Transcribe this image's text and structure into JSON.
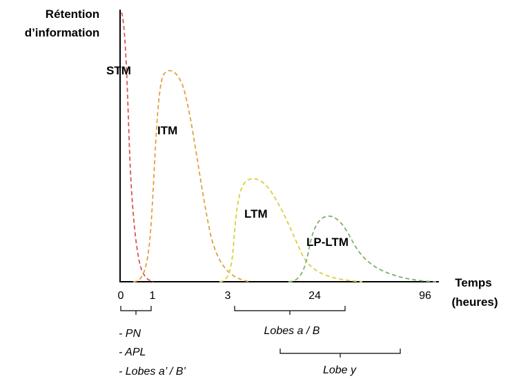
{
  "y_axis_label": [
    "Rétention",
    "d’information"
  ],
  "x_axis_label": [
    "Temps",
    "(heures)"
  ],
  "ticks": [
    "0",
    "1",
    "3",
    "24",
    "96"
  ],
  "curves": [
    {
      "label": "STM",
      "color": "#d9534f"
    },
    {
      "label": "ITM",
      "color": "#e0a040"
    },
    {
      "label": "LTM",
      "color": "#d8d040"
    },
    {
      "label": "LP-LTM",
      "color": "#7fb069"
    }
  ],
  "structures": {
    "group1": [
      "- PN",
      "- APL",
      "- Lobes a’ / B’"
    ],
    "group2": "Lobes a / B",
    "group3": "Lobe y"
  }
}
